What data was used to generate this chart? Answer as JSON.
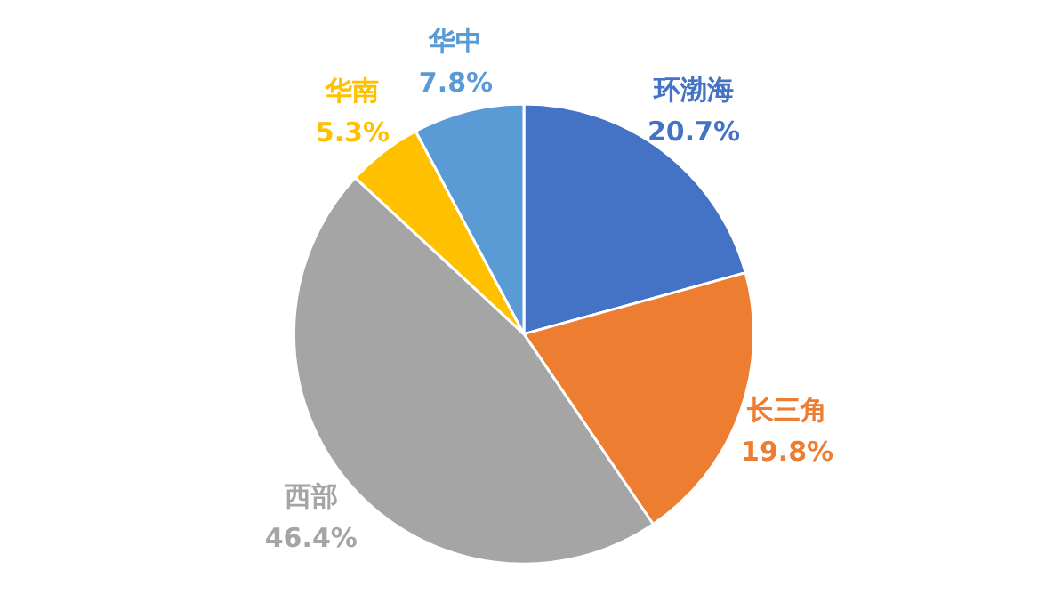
{
  "chart_data": {
    "type": "pie",
    "categories": [
      "环渤海",
      "长三角",
      "西部",
      "华南",
      "华中"
    ],
    "values": [
      20.7,
      19.8,
      46.4,
      5.3,
      7.8
    ],
    "colors": [
      "#4472c4",
      "#ed7d31",
      "#a5a5a5",
      "#ffc000",
      "#5b9bd5"
    ],
    "value_labels": [
      "20.7%",
      "19.8%",
      "46.4%",
      "5.3%",
      "7.8%"
    ]
  }
}
